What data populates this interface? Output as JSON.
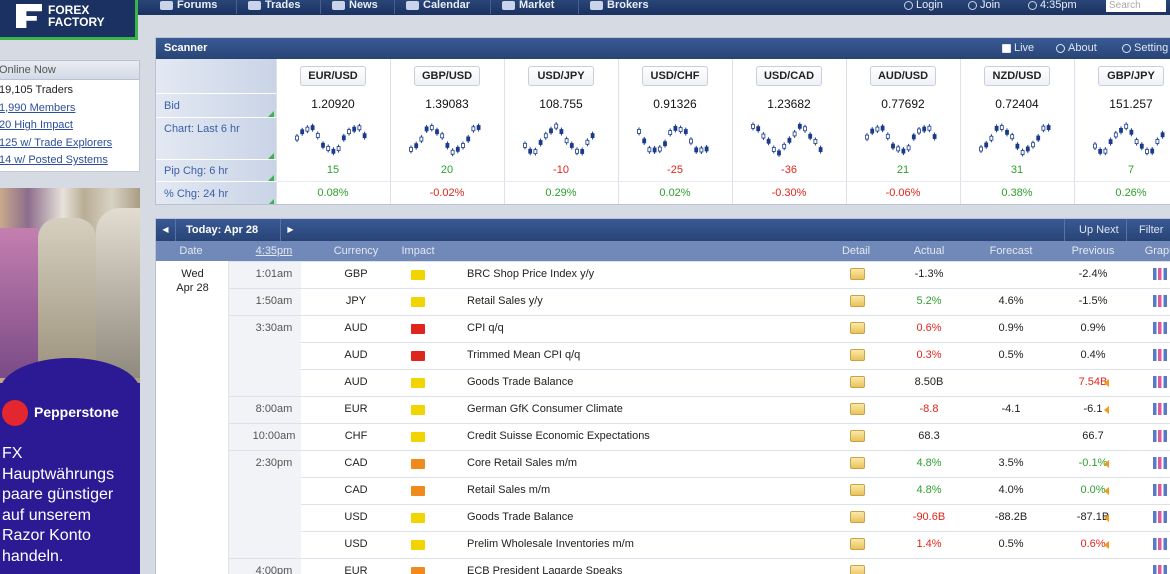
{
  "nav": {
    "logo": [
      "FOREX",
      "FACTORY"
    ],
    "items": [
      "Forums",
      "Trades",
      "News",
      "Calendar",
      "Market",
      "Brokers"
    ],
    "right": [
      "Login",
      "Join",
      "4:35pm"
    ],
    "search": "Search"
  },
  "sidebar": {
    "title": "Online Now",
    "stats": [
      "19,105 Traders",
      "1,990 Members",
      "20 High Impact",
      "125 w/ Trade Explorers",
      "14 w/ Posted Systems"
    ],
    "ad": {
      "brand": "Pepperstone",
      "lines": [
        "FX",
        "Hauptwährungs",
        "paare günstiger",
        "auf unserem",
        "Razor Konto",
        "handeln."
      ]
    }
  },
  "scanner": {
    "title": "Scanner",
    "controls": [
      "Live",
      "About",
      "Setting"
    ],
    "row_labels": [
      "Bid",
      "Chart: Last 6 hr",
      "Pip Chg: 6 hr",
      "% Chg: 24 hr"
    ],
    "pairs": [
      {
        "name": "EUR/USD",
        "bid": "1.20920",
        "pip": 15,
        "pct": 0.08,
        "pct_label": "0.08%"
      },
      {
        "name": "GBP/USD",
        "bid": "1.39083",
        "pip": 20,
        "pct": -0.02,
        "pct_label": "-0.02%"
      },
      {
        "name": "USD/JPY",
        "bid": "108.755",
        "pip": -10,
        "pct": 0.29,
        "pct_label": "0.29%"
      },
      {
        "name": "USD/CHF",
        "bid": "0.91326",
        "pip": -25,
        "pct": 0.02,
        "pct_label": "0.02%"
      },
      {
        "name": "USD/CAD",
        "bid": "1.23682",
        "pip": -36,
        "pct": -0.3,
        "pct_label": "-0.30%"
      },
      {
        "name": "AUD/USD",
        "bid": "0.77692",
        "pip": 21,
        "pct": -0.06,
        "pct_label": "-0.06%"
      },
      {
        "name": "NZD/USD",
        "bid": "0.72404",
        "pip": 31,
        "pct": 0.38,
        "pct_label": "0.38%"
      },
      {
        "name": "GBP/JPY",
        "bid": "151.257",
        "pip": 7,
        "pct": 0.26,
        "pct_label": "0.26%"
      }
    ]
  },
  "calendar": {
    "day": "Today: Apr 28",
    "controls": [
      "Up Next",
      "Filter"
    ],
    "columns": [
      "Date",
      "4:35pm",
      "Currency",
      "Impact",
      "Detail",
      "Actual",
      "Forecast",
      "Previous",
      "Graph"
    ],
    "date": [
      "Wed",
      "Apr 28"
    ],
    "rows": [
      {
        "time": "1:01am",
        "currency": "GBP",
        "impact_color": "#f2d400",
        "event": "BRC Shop Price Index y/y",
        "actual": "-1.3%",
        "previous": "-2.4%"
      },
      {
        "time": "1:50am",
        "currency": "JPY",
        "impact_color": "#f2d400",
        "event": "Retail Sales y/y",
        "actual": "5.2%",
        "actual_color": "#2ea02e",
        "forecast": "4.6%",
        "previous": "-1.5%"
      },
      {
        "time": "3:30am",
        "currency": "AUD",
        "impact_color": "#e0261c",
        "event": "CPI q/q",
        "actual": "0.6%",
        "actual_color": "#e0261c",
        "forecast": "0.9%",
        "previous": "0.9%"
      },
      {
        "currency": "AUD",
        "impact_color": "#e0261c",
        "event": "Trimmed Mean CPI q/q",
        "actual": "0.3%",
        "actual_color": "#e0261c",
        "forecast": "0.5%",
        "previous": "0.4%"
      },
      {
        "currency": "AUD",
        "impact_color": "#f2d400",
        "event": "Goods Trade Balance",
        "actual": "8.50B",
        "previous": "7.54B",
        "previous_color": "#e0261c",
        "revised": true
      },
      {
        "time": "8:00am",
        "currency": "EUR",
        "impact_color": "#f2d400",
        "event": "German GfK Consumer Climate",
        "actual": "-8.8",
        "actual_color": "#e0261c",
        "forecast": "-4.1",
        "previous": "-6.1",
        "revised": true
      },
      {
        "time": "10:00am",
        "currency": "CHF",
        "impact_color": "#f2d400",
        "event": "Credit Suisse Economic Expectations",
        "actual": "68.3",
        "previous": "66.7"
      },
      {
        "time": "2:30pm",
        "currency": "CAD",
        "impact_color": "#f08a1c",
        "event": "Core Retail Sales m/m",
        "actual": "4.8%",
        "actual_color": "#2ea02e",
        "forecast": "3.5%",
        "previous": "-0.1%",
        "previous_color": "#2ea02e",
        "revised": true
      },
      {
        "currency": "CAD",
        "impact_color": "#f08a1c",
        "event": "Retail Sales m/m",
        "actual": "4.8%",
        "actual_color": "#2ea02e",
        "forecast": "4.0%",
        "previous": "0.0%",
        "previous_color": "#2ea02e",
        "revised": true
      },
      {
        "currency": "USD",
        "impact_color": "#f2d400",
        "event": "Goods Trade Balance",
        "actual": "-90.6B",
        "actual_color": "#e0261c",
        "forecast": "-88.2B",
        "previous": "-87.1B",
        "revised": true
      },
      {
        "currency": "USD",
        "impact_color": "#f2d400",
        "event": "Prelim Wholesale Inventories m/m",
        "actual": "1.4%",
        "actual_color": "#e0261c",
        "forecast": "0.5%",
        "previous": "0.6%",
        "previous_color": "#e0261c",
        "revised": true
      },
      {
        "time": "4:00pm",
        "currency": "EUR",
        "impact_color": "#f08a1c",
        "event": "ECB President Lagarde Speaks"
      }
    ]
  }
}
